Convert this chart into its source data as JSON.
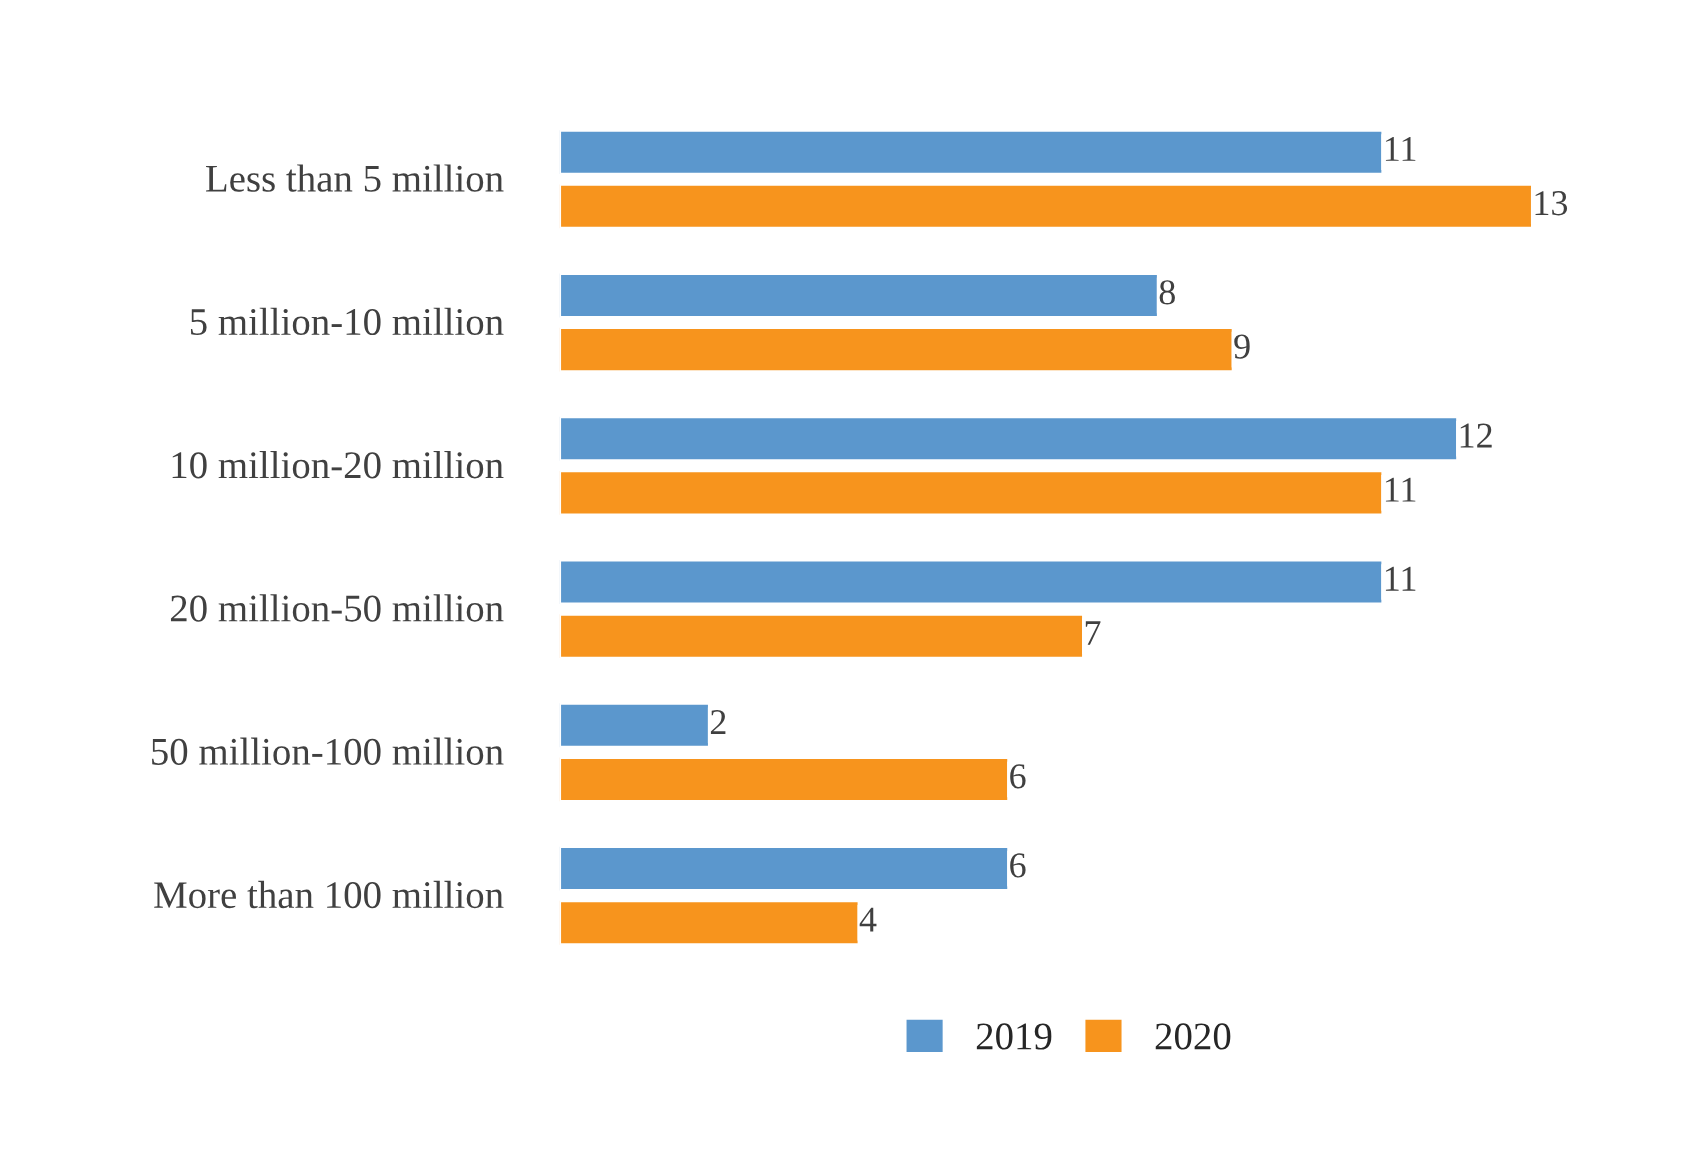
{
  "chart_data": {
    "type": "bar",
    "orientation": "horizontal",
    "categories": [
      "Less than 5 million",
      "5 million-10 million",
      "10 million-20 million",
      "20 million-50 million",
      "50 million-100 million",
      "More than 100 million"
    ],
    "series": [
      {
        "name": "2019",
        "color": "#5b97cd",
        "values": [
          11,
          8,
          12,
          11,
          2,
          6
        ]
      },
      {
        "name": "2020",
        "color": "#f7941d",
        "values": [
          13,
          9,
          11,
          7,
          6,
          4
        ]
      }
    ],
    "xlim": [
      0,
      13.6
    ],
    "tick_labels": "y",
    "data_labels": true,
    "legend": "bottom",
    "grid": false
  }
}
